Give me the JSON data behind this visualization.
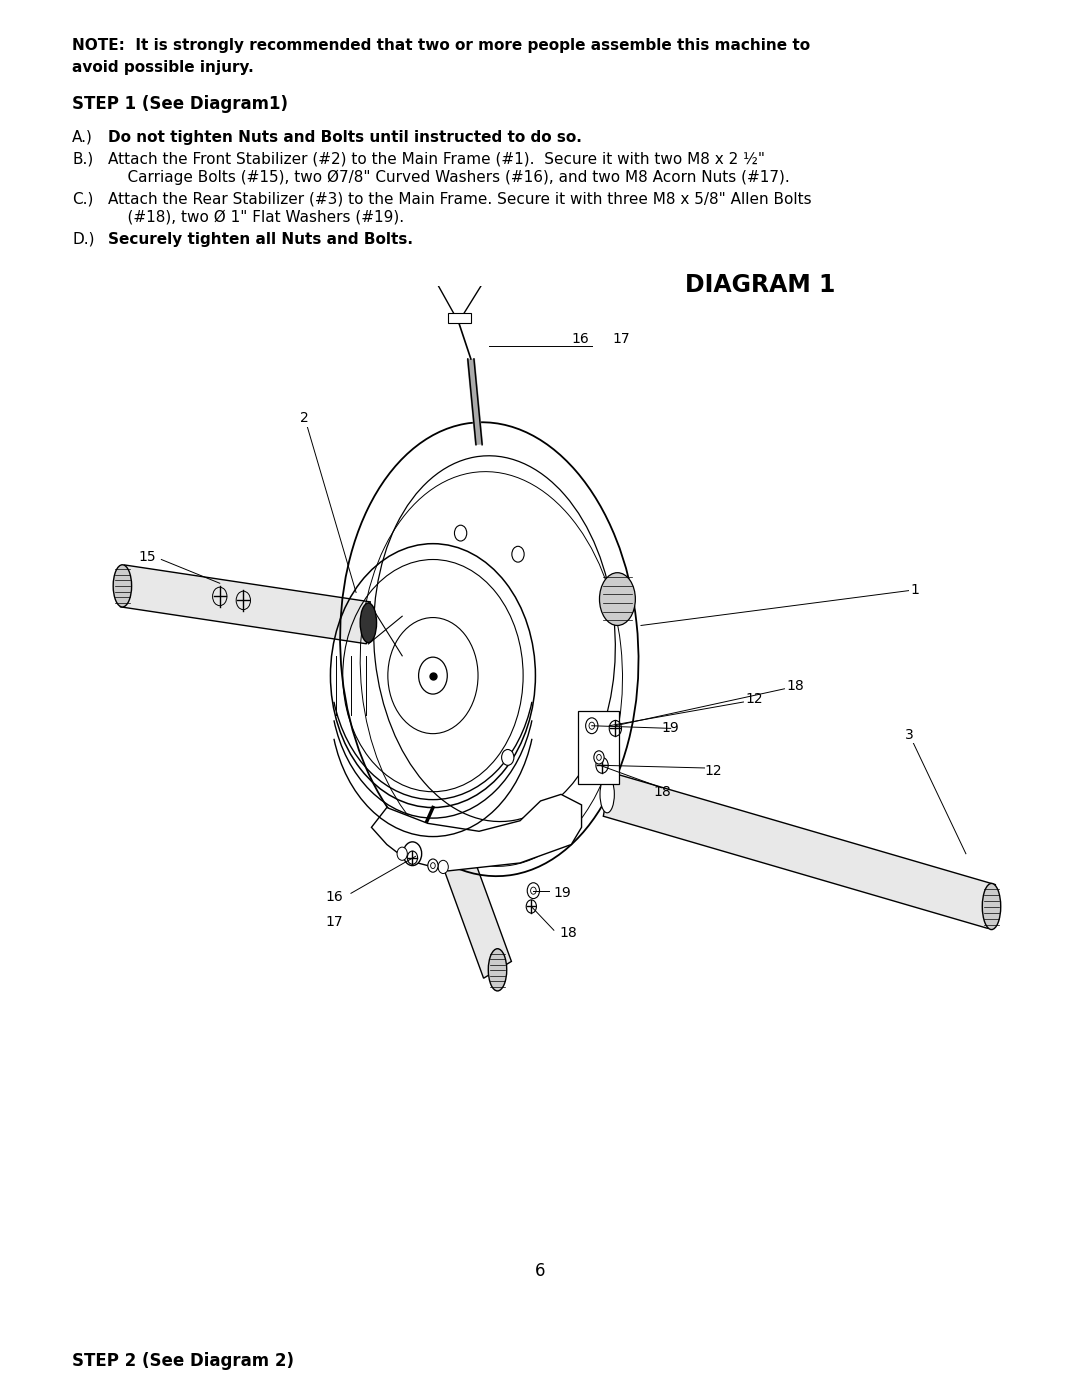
{
  "background_color": "#ffffff",
  "page_number": "6",
  "note_line1": "NOTE:  It is strongly recommended that two or more people assemble this machine to",
  "note_line2": "avoid possible injury.",
  "step1_header": "STEP 1 (See Diagram1)",
  "item_a_bold": "Do not tighten Nuts and Bolts until instructed to do so.",
  "item_b1": "Attach the Front Stabilizer (#2) to the Main Frame (#1).  Secure it with two M8 x 2 ½\"",
  "item_b2": "    Carriage Bolts (#15), two Ø7/8\" Curved Washers (#16), and two M8 Acorn Nuts (#17).",
  "item_c1": "Attach the Rear Stabilizer (#3) to the Main Frame. Secure it with three M8 x 5/8\" Allen Bolts",
  "item_c2": "    (#18), two Ø 1\" Flat Washers (#19).",
  "item_d_bold": "Securely tighten all Nuts and Bolts.",
  "diagram_title": "DIAGRAM 1",
  "step2_footer": "STEP 2 (See Diagram 2)",
  "body_fontsize": 11.0,
  "header_fontsize": 12.0,
  "diagram_title_fontsize": 17
}
